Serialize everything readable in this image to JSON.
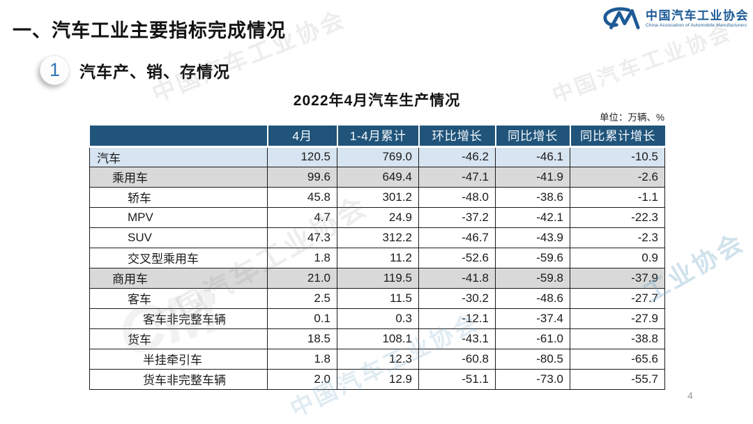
{
  "page": {
    "title": "一、汽车工业主要指标完成情况",
    "page_number": "4"
  },
  "logo": {
    "glyph": "CM",
    "name_cn": "中国汽车工业协会",
    "name_en": "China Association of Automobile Manufacturers",
    "color": "#1D5A96"
  },
  "section": {
    "index": "1",
    "label": "汽车产、销、存情况"
  },
  "chart_data": {
    "type": "table",
    "title": "2022年4月汽车生产情况",
    "unit_label": "单位：万辆、%",
    "columns": [
      "",
      "4月",
      "1-4月累计",
      "环比增长",
      "同比增长",
      "同比累计增长"
    ],
    "rows": [
      {
        "label": "汽车",
        "indent": 0,
        "highlight": "blue",
        "values": [
          "120.5",
          "769.0",
          "-46.2",
          "-46.1",
          "-10.5"
        ]
      },
      {
        "label": "乘用车",
        "indent": 1,
        "highlight": "gray",
        "values": [
          "99.6",
          "649.4",
          "-47.1",
          "-41.9",
          "-2.6"
        ]
      },
      {
        "label": "轿车",
        "indent": 2,
        "highlight": "none",
        "values": [
          "45.8",
          "301.2",
          "-48.0",
          "-38.6",
          "-1.1"
        ]
      },
      {
        "label": "MPV",
        "indent": 2,
        "highlight": "none",
        "values": [
          "4.7",
          "24.9",
          "-37.2",
          "-42.1",
          "-22.3"
        ]
      },
      {
        "label": "SUV",
        "indent": 2,
        "highlight": "none",
        "values": [
          "47.3",
          "312.2",
          "-46.7",
          "-43.9",
          "-2.3"
        ]
      },
      {
        "label": "交叉型乘用车",
        "indent": 2,
        "highlight": "none",
        "values": [
          "1.8",
          "11.2",
          "-52.6",
          "-59.6",
          "0.9"
        ]
      },
      {
        "label": "商用车",
        "indent": 1,
        "highlight": "gray",
        "values": [
          "21.0",
          "119.5",
          "-41.8",
          "-59.8",
          "-37.9"
        ]
      },
      {
        "label": "客车",
        "indent": 2,
        "highlight": "none",
        "values": [
          "2.5",
          "11.5",
          "-30.2",
          "-48.6",
          "-27.7"
        ]
      },
      {
        "label": "客车非完整车辆",
        "indent": 3,
        "highlight": "none",
        "values": [
          "0.1",
          "0.3",
          "-12.1",
          "-37.4",
          "-27.9"
        ]
      },
      {
        "label": "货车",
        "indent": 2,
        "highlight": "none",
        "values": [
          "18.5",
          "108.1",
          "-43.1",
          "-61.0",
          "-38.8"
        ]
      },
      {
        "label": "半挂牵引车",
        "indent": 3,
        "highlight": "none",
        "values": [
          "1.8",
          "12.3",
          "-60.8",
          "-80.5",
          "-65.6"
        ]
      },
      {
        "label": "货车非完整车辆",
        "indent": 3,
        "highlight": "none",
        "values": [
          "2.0",
          "12.9",
          "-51.1",
          "-73.0",
          "-55.7"
        ]
      }
    ]
  },
  "watermarks": {
    "top_center": "中国汽车工业协会",
    "top_right": "中国汽车工业协会",
    "mid_left": "中国汽车工业协会",
    "mid_right": "工业协会",
    "bottom_left": "CM",
    "bottom_center": "中国汽车工业协会"
  },
  "colors": {
    "header_bg": "#20547A",
    "row_blue": "#D7E4F1",
    "row_gray": "#D9D9D9",
    "logo_blue": "#1D5A96",
    "index_blue": "#2E74B5"
  }
}
